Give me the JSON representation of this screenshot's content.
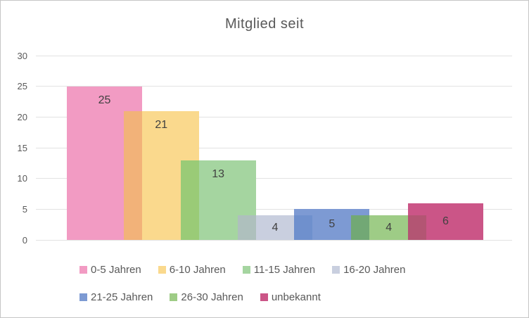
{
  "window": {
    "background": "#FFFFFF",
    "border_color": "#C6C6C6"
  },
  "chart_data": {
    "type": "bar",
    "title": "Mitglied seit",
    "categories": [
      "0-5 Jahren",
      "6-10 Jahren",
      "11-15 Jahren",
      "16-20 Jahren",
      "21-25 Jahren",
      "26-30 Jahren",
      "unbekannt"
    ],
    "values": [
      25,
      21,
      13,
      4,
      5,
      4,
      6
    ],
    "bar_colors": [
      "#F29BC3",
      "#FAD98D",
      "#A5D5A0",
      "#C9CFDF",
      "#7D9AD3",
      "#9ECC86",
      "#CB5587"
    ],
    "overlap_colors": [
      null,
      "#F2B279",
      "#9ACB77",
      "#AEC0BD",
      "#6F90CD",
      "#72A875",
      "#B35573"
    ],
    "xlabel": "",
    "ylabel": "",
    "ylim": [
      0,
      30
    ],
    "yticks": [
      0,
      5,
      10,
      15,
      20,
      25,
      30
    ],
    "grid": true,
    "legend_position": "bottom",
    "gridline_color": "#E2E2E2",
    "text_colors": {
      "title": "#595959",
      "axis": "#595959",
      "data_label": "#404040",
      "legend": "#595959"
    }
  }
}
